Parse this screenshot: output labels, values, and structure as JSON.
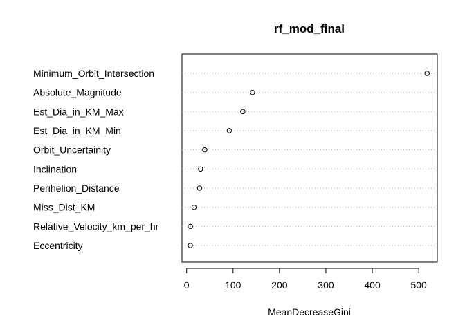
{
  "chart_data": {
    "type": "scatter",
    "title": "rf_mod_final",
    "xlabel": "MeanDecreaseGini",
    "ylabel": "",
    "xlim": [
      -10,
      540
    ],
    "xticks": [
      "0",
      "100",
      "200",
      "300",
      "400",
      "500"
    ],
    "grid": "dotted horizontal guide lines",
    "categories": [
      "Minimum_Orbit_Intersection",
      "Absolute_Magnitude",
      "Est_Dia_in_KM_Max",
      "Est_Dia_in_KM_Min",
      "Orbit_Uncertainity",
      "Inclination",
      "Perihelion_Distance",
      "Miss_Dist_KM",
      "Relative_Velocity_km_per_hr",
      "Eccentricity"
    ],
    "values": [
      518,
      142,
      121,
      92,
      39,
      30,
      28,
      16,
      8,
      8
    ]
  }
}
